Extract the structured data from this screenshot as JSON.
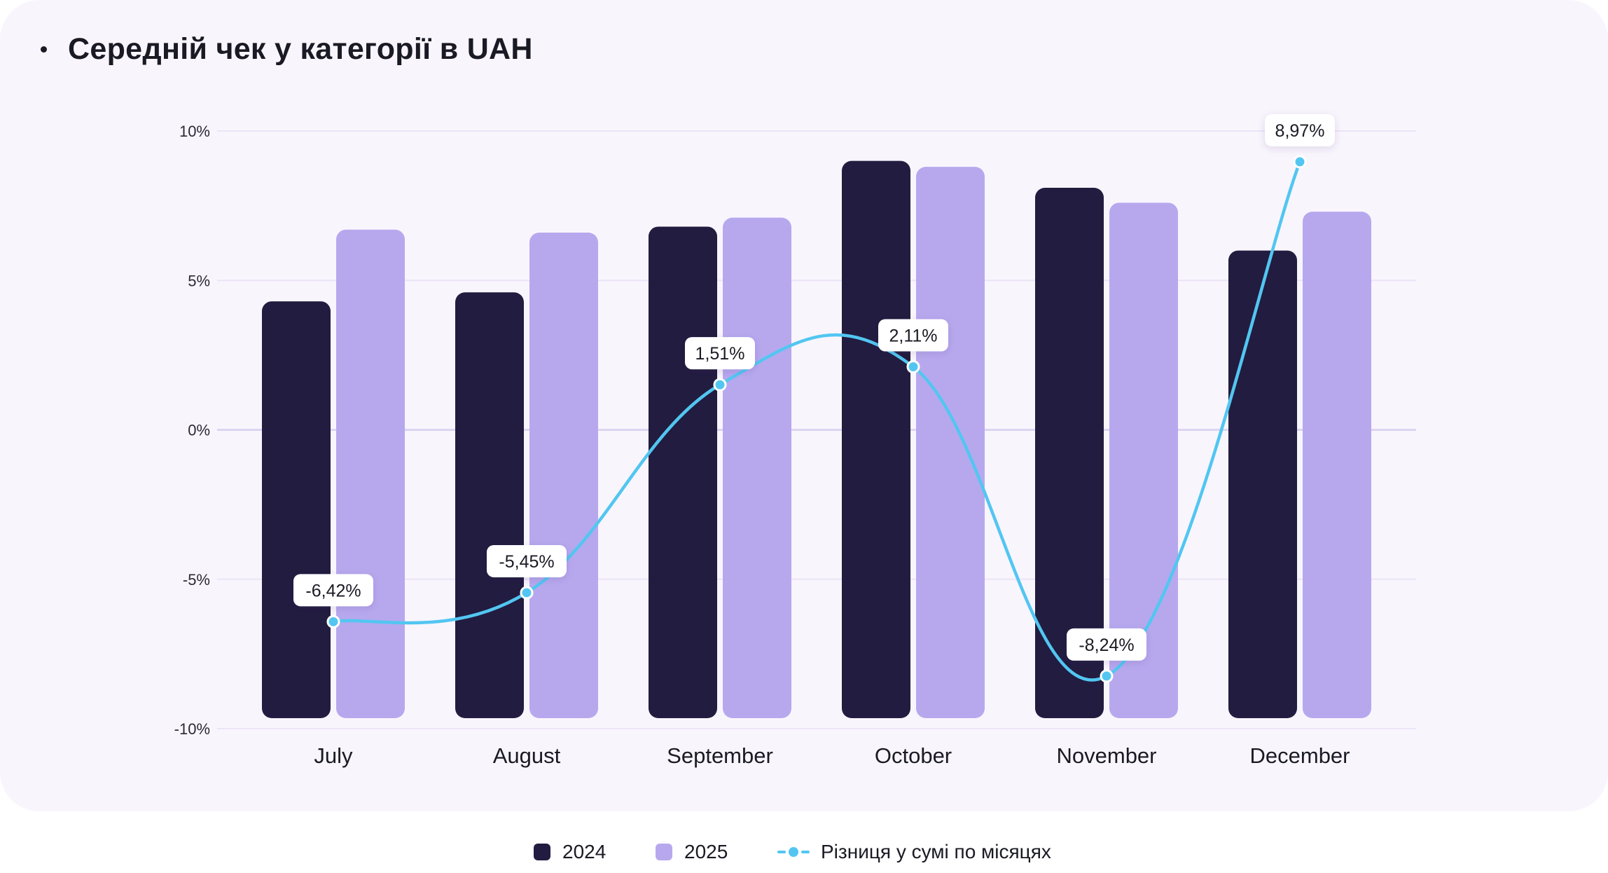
{
  "chart_data": {
    "type": "bar",
    "title": "Середній чек у категорії в UAH",
    "categories": [
      "July",
      "August",
      "September",
      "October",
      "November",
      "December"
    ],
    "yaxis": {
      "min": -10,
      "max": 10,
      "ticks": [
        10,
        5,
        0,
        -5,
        -10
      ],
      "tick_labels": [
        "10%",
        "5%",
        "0%",
        "-5%",
        "-10%"
      ]
    },
    "series": [
      {
        "name": "2024",
        "type": "bar",
        "color": "#221c40",
        "values": [
          4.3,
          4.6,
          6.8,
          9.0,
          8.1,
          6.0
        ]
      },
      {
        "name": "2025",
        "type": "bar",
        "color": "#b7a8ee",
        "values": [
          6.7,
          6.6,
          7.1,
          8.8,
          7.6,
          7.3
        ]
      },
      {
        "name": "Різниця у сумі по місяцях",
        "type": "line",
        "color": "#52c6f1",
        "values": [
          -6.42,
          -5.45,
          1.51,
          2.11,
          -8.24,
          8.97
        ],
        "labels": [
          "-6,42%",
          "-5,45%",
          "1,51%",
          "2,11%",
          "-8,24%",
          "8,97%"
        ]
      }
    ],
    "grid": true,
    "legend_position": "bottom-center"
  },
  "legend": {
    "items": [
      {
        "label": "2024",
        "color": "#221c40"
      },
      {
        "label": "2025",
        "color": "#b7a8ee"
      },
      {
        "label": "Різниця у сумі по місяцях",
        "color": "#52c6f1"
      }
    ]
  }
}
